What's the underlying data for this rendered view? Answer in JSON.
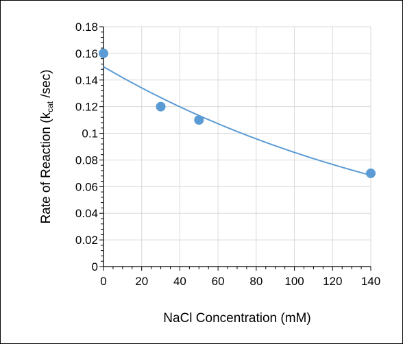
{
  "chart_data": {
    "type": "scatter",
    "xlabel": "NaCl Concentration (mM)",
    "ylabel": {
      "prefix": "Rate of Reaction (k",
      "subscript": "cat",
      "suffix": " /sec)"
    },
    "xlim": [
      0,
      140
    ],
    "ylim": [
      0,
      0.18
    ],
    "xticks": [
      "0",
      "20",
      "40",
      "60",
      "80",
      "100",
      "120",
      "140"
    ],
    "yticks": [
      "0",
      "0.02",
      "0.04",
      "0.06",
      "0.08",
      "0.1",
      "0.12",
      "0.14",
      "0.16",
      "0.18"
    ],
    "grid": true,
    "legend": "none",
    "points": [
      {
        "x": 0,
        "y": 0.16
      },
      {
        "x": 30,
        "y": 0.12
      },
      {
        "x": 50,
        "y": 0.11
      },
      {
        "x": 140,
        "y": 0.07
      }
    ],
    "trendline": {
      "type": "exponential",
      "x_start": 0,
      "x_end": 140,
      "y_start": 0.15,
      "y_end": 0.0685
    },
    "colors": {
      "marker": "#5b9bd5",
      "trendline": "#5b9bd5",
      "grid": "#d9d9d9",
      "axis": "#000000"
    }
  }
}
